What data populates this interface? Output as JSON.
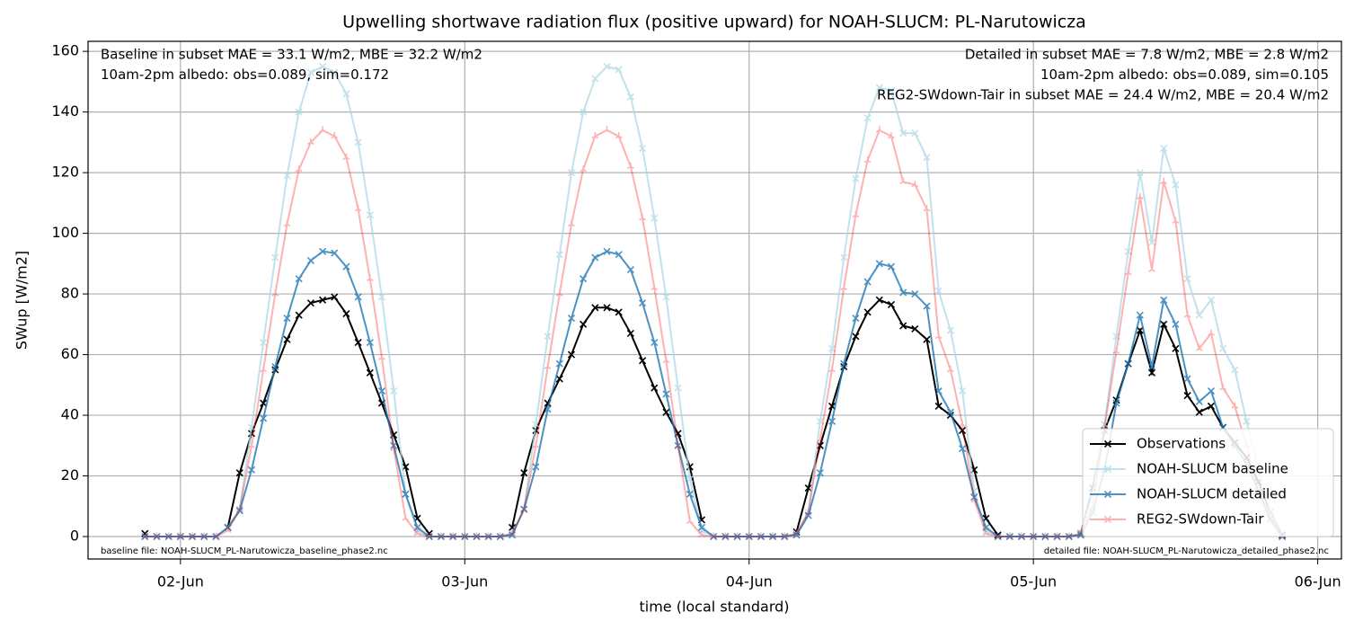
{
  "chart_data": {
    "type": "line",
    "title": "Upwelling shortwave radiation flux (positive upward) for NOAH-SLUCM: PL-Narutowicza",
    "x_label": "time (local standard)",
    "y_label": "SWup [W/m2]",
    "x": [
      -3,
      -2,
      -1,
      0,
      1,
      2,
      3,
      4,
      5,
      6,
      7,
      8,
      9,
      10,
      11,
      12,
      13,
      14,
      15,
      16,
      17,
      18,
      19,
      20,
      21,
      22,
      23,
      24,
      25,
      26,
      27,
      28,
      29,
      30,
      31,
      32,
      33,
      34,
      35,
      36,
      37,
      38,
      39,
      40,
      41,
      42,
      43,
      44,
      45,
      46,
      47,
      48,
      49,
      50,
      51,
      52,
      53,
      54,
      55,
      56,
      57,
      58,
      59,
      60,
      61,
      62,
      63,
      64,
      65,
      66,
      67,
      68,
      69,
      70,
      71,
      72,
      73,
      74,
      75,
      76,
      77,
      78,
      79,
      80,
      81,
      82,
      83,
      84,
      85,
      86,
      87,
      88,
      89,
      90,
      91,
      92,
      93
    ],
    "series": [
      {
        "name": "Observations",
        "color": "#000000",
        "opacity": 1,
        "values": [
          1,
          null,
          null,
          null,
          null,
          null,
          null,
          3,
          21,
          34,
          44,
          55,
          65,
          73,
          77,
          78,
          79,
          73.5,
          64,
          54,
          44,
          33.5,
          23,
          6,
          1,
          null,
          null,
          null,
          null,
          null,
          null,
          3,
          21,
          35,
          44,
          52,
          60,
          70,
          75.5,
          75.5,
          74,
          67,
          58,
          49,
          41,
          34,
          23,
          5.5,
          null,
          null,
          null,
          null,
          null,
          null,
          null,
          1.5,
          16,
          30,
          43,
          56,
          66,
          74,
          78,
          76.5,
          69.5,
          68.5,
          65,
          43,
          40,
          35,
          22,
          6,
          0.5,
          null,
          null,
          null,
          null,
          null,
          null,
          1,
          16,
          35,
          45,
          57,
          68,
          54,
          70,
          62,
          46.5,
          41,
          43,
          36,
          31,
          26,
          18,
          8,
          0.5
        ]
      },
      {
        "name": "NOAH-SLUCM baseline",
        "color": "#add8e6",
        "opacity": 0.75,
        "values": [
          0,
          0,
          0,
          0,
          0,
          0,
          0,
          3,
          9,
          36,
          64,
          92,
          119,
          140,
          153,
          155,
          153,
          146,
          130,
          106,
          79,
          48,
          14,
          2,
          0,
          0,
          0,
          0,
          0,
          0,
          0,
          1,
          9,
          37,
          66,
          93,
          120,
          140,
          151,
          155,
          154,
          145,
          128,
          105,
          79,
          49,
          19,
          2,
          0,
          0,
          0,
          0,
          0,
          0,
          0,
          1,
          8,
          38,
          62,
          92,
          118,
          138,
          148,
          147,
          133,
          133,
          125,
          81,
          68,
          48,
          15,
          2,
          0,
          0,
          0,
          0,
          0,
          0,
          0,
          1,
          14,
          37,
          66,
          94,
          120,
          97,
          128,
          116,
          85,
          73,
          78,
          62,
          55,
          38,
          22,
          8,
          0
        ]
      },
      {
        "name": "NOAH-SLUCM detailed",
        "color": "#1f77b4",
        "opacity": 0.8,
        "values": [
          0,
          0,
          0,
          0,
          0,
          0,
          0,
          3,
          8.5,
          22,
          39,
          56,
          72,
          85,
          91,
          94,
          93.5,
          89,
          79,
          64,
          48,
          30,
          14,
          3,
          0,
          0,
          0,
          0,
          0,
          0,
          0,
          0.5,
          9,
          23,
          42,
          57,
          72,
          85,
          92,
          94,
          93,
          88,
          77,
          64,
          47,
          30,
          14,
          3,
          0,
          0,
          0,
          0,
          0,
          0,
          0,
          0.5,
          7,
          21,
          38,
          57,
          72,
          84,
          90,
          89,
          80.5,
          80,
          76,
          48,
          41,
          29,
          13,
          3,
          0,
          0,
          0,
          0,
          0,
          0,
          0,
          0.5,
          8,
          22,
          44,
          57,
          73,
          56,
          78,
          70,
          52,
          44.5,
          48,
          36,
          30,
          24,
          15,
          6,
          0
        ]
      },
      {
        "name": "REG2-SWdown-Tair",
        "color": "#ff0000",
        "opacity": 0.3,
        "values": [
          0,
          0,
          0,
          0,
          0,
          0,
          0,
          2,
          9,
          30,
          55,
          80,
          103,
          121,
          130,
          134,
          132,
          125,
          108,
          85,
          59,
          29,
          6,
          1,
          0,
          0,
          0,
          0,
          0,
          0,
          0,
          1,
          9,
          30,
          56,
          80,
          103,
          121,
          132,
          134,
          132,
          122,
          105,
          82,
          58,
          30,
          5,
          0.5,
          0,
          0,
          0,
          0,
          0,
          0,
          0,
          1,
          8,
          32,
          55,
          82,
          106,
          124,
          134,
          132,
          117,
          116,
          108,
          66,
          55,
          37,
          12,
          1,
          0,
          0,
          0,
          0,
          0,
          0,
          0,
          1,
          10,
          36,
          61,
          87,
          112,
          88,
          117,
          104,
          73,
          62,
          67,
          49,
          43,
          30,
          14,
          5,
          0
        ]
      }
    ],
    "xlim": [
      -7.8,
      98
    ],
    "xticks": [
      {
        "value": 0,
        "label": "02-Jun"
      },
      {
        "value": 24,
        "label": "03-Jun"
      },
      {
        "value": 48,
        "label": "04-Jun"
      },
      {
        "value": 72,
        "label": "05-Jun"
      },
      {
        "value": 96,
        "label": "06-Jun"
      }
    ],
    "ylim": [
      -7.4,
      163.3
    ],
    "yticks": [
      0,
      20,
      40,
      60,
      80,
      100,
      120,
      140,
      160
    ],
    "grid": true,
    "legend": "lower right",
    "left_annotations": [
      {
        "text": "Baseline in subset MAE = 33.1 W/m2, MBE = 32.2 W/m2",
        "color": "#add8e6"
      },
      {
        "text": "10am-2pm albedo: obs=0.089, sim=0.172",
        "color": "#000000"
      }
    ],
    "right_annotations": [
      {
        "text": "Detailed in subset MAE = 7.8 W/m2, MBE = 2.8 W/m2",
        "color": "#1f77b4"
      },
      {
        "text": "10am-2pm albedo: obs=0.089, sim=0.105",
        "color": "#000000"
      },
      {
        "text": "REG2-SWdown-Tair in subset MAE = 24.4 W/m2, MBE = 20.4 W/m2",
        "color": "#ff0000"
      }
    ],
    "footnotes": [
      "baseline file: NOAH-SLUCM_PL-Narutowicza_baseline_phase2.nc",
      "detailed file: NOAH-SLUCM_PL-Narutowicza_detailed_phase2.nc"
    ]
  }
}
